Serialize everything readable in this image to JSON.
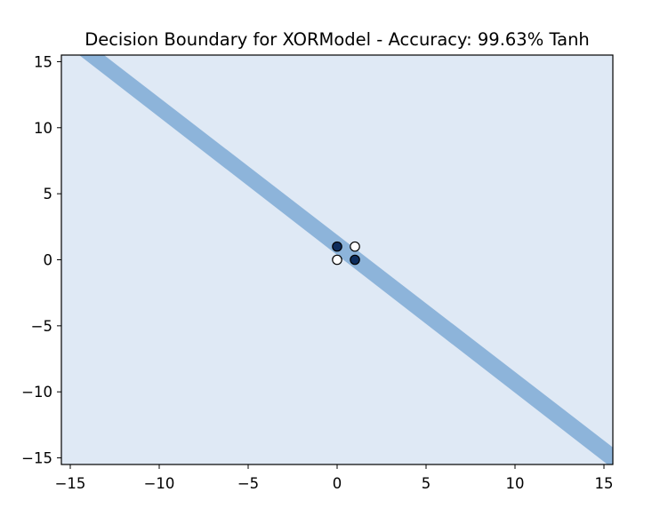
{
  "chart_data": {
    "type": "scatter",
    "title": "Decision Boundary for XORModel - Accuracy: 99.63% Tanh",
    "xlabel": "",
    "ylabel": "",
    "xlim": [
      -15.5,
      15.5
    ],
    "ylim": [
      -15.5,
      15.5
    ],
    "x_ticks": [
      -15,
      -10,
      -5,
      0,
      5,
      10,
      15
    ],
    "y_ticks": [
      -15,
      -10,
      -5,
      0,
      5,
      10,
      15
    ],
    "x_tick_labels": [
      "−15",
      "−10",
      "−5",
      "0",
      "5",
      "10",
      "15"
    ],
    "y_tick_labels": [
      "−15",
      "−10",
      "−5",
      "0",
      "5",
      "10",
      "15"
    ],
    "grid": false,
    "background_region": {
      "color": "#dfe9f5"
    },
    "decision_band": {
      "color": "#8db4da",
      "polygon": [
        [
          -14.5,
          15.5
        ],
        [
          -13.1,
          15.5
        ],
        [
          15.5,
          -14.2
        ],
        [
          15.5,
          -15.5
        ],
        [
          15.2,
          -15.5
        ]
      ]
    },
    "points": [
      {
        "x": 0,
        "y": 0,
        "class": 0,
        "color": "#ffffff"
      },
      {
        "x": 1,
        "y": 1,
        "class": 0,
        "color": "#ffffff"
      },
      {
        "x": 0,
        "y": 1,
        "class": 1,
        "color": "#0d2c5c"
      },
      {
        "x": 1,
        "y": 0,
        "class": 1,
        "color": "#0d2c5c"
      }
    ]
  }
}
